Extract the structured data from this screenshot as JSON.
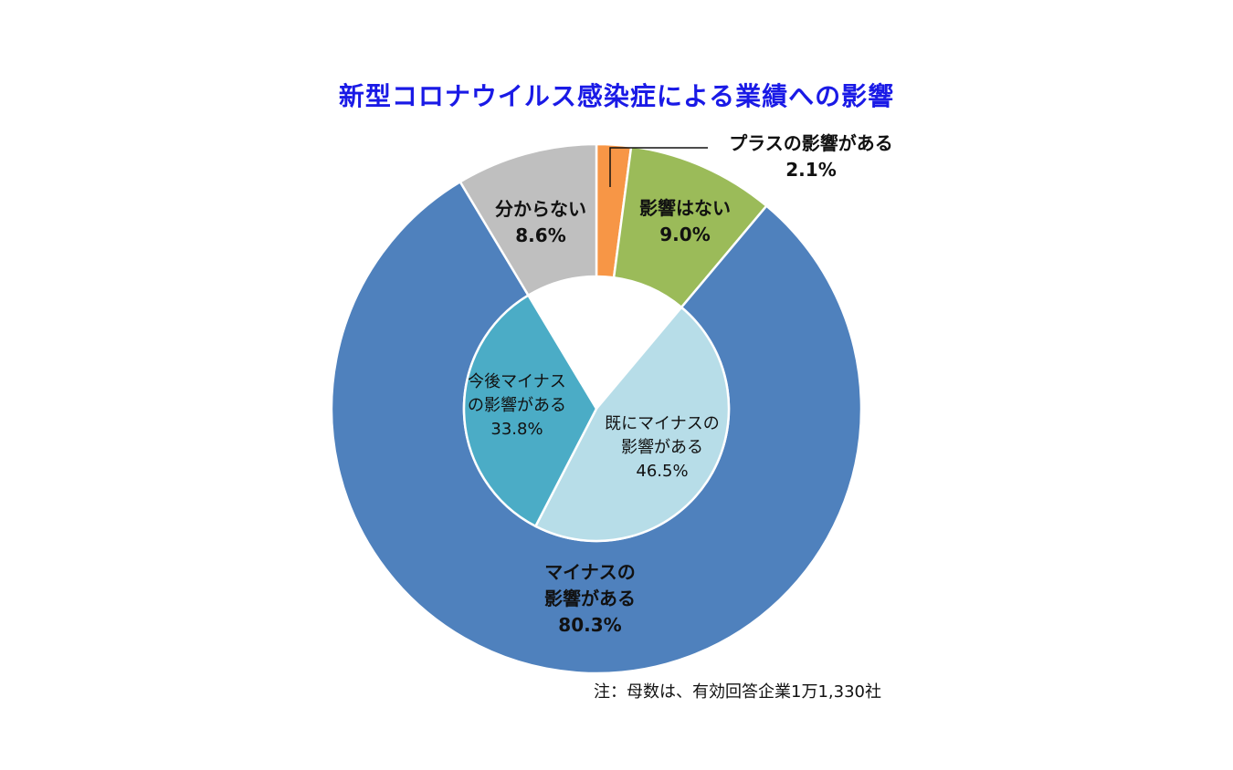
{
  "chart_data": {
    "type": "pie",
    "title": "新型コロナウイルス感染症による業績への影響",
    "note": "注：母数は、有効回答企業1万1,330社",
    "outer_ring": [
      {
        "label_lines": [
          "プラスの影響がある"
        ],
        "value": 2.1,
        "value_label": "2.1%",
        "color": "#F79646"
      },
      {
        "label_lines": [
          "影響はない"
        ],
        "value": 9.0,
        "value_label": "9.0%",
        "color": "#9BBB59"
      },
      {
        "label_lines": [
          "マイナスの",
          "影響がある"
        ],
        "value": 80.3,
        "value_label": "80.3%",
        "color": "#4F81BD"
      },
      {
        "label_lines": [
          "分からない"
        ],
        "value": 8.6,
        "value_label": "8.6%",
        "color": "#BFBFBF"
      }
    ],
    "inner_ring": [
      {
        "label_lines": [
          "既にマイナスの",
          "影響がある"
        ],
        "value": 46.5,
        "value_label": "46.5%",
        "color": "#B7DDE8"
      },
      {
        "label_lines": [
          "今後マイナス",
          "の影響がある"
        ],
        "value": 33.8,
        "value_label": "33.8%",
        "color": "#4BACC6"
      }
    ]
  }
}
